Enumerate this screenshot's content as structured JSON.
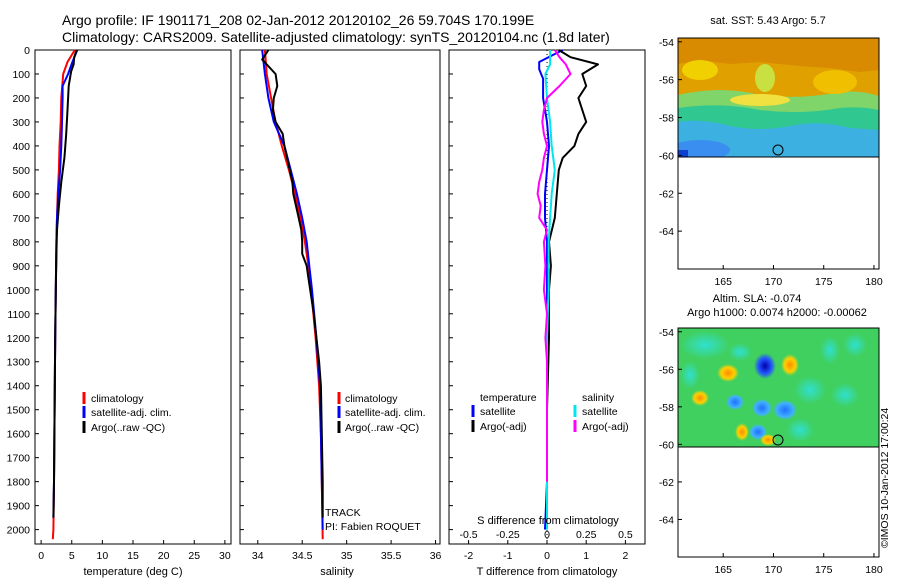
{
  "header": {
    "line1": "Argo profile: IF 1901171_208 02-Jan-2012 20120102_26 59.704S 170.199E",
    "line2": "Climatology: CARS2009. Satellite-adjusted climatology: synTS_20120104.nc (1.8d later)"
  },
  "colors": {
    "climatology": "#ff0000",
    "satellite": "#0000ff",
    "argo": "#000000",
    "satellite_diff": "#00e5ee",
    "argo_diff": "#ff00ff"
  },
  "chart_data": [
    {
      "id": "temperature",
      "type": "line",
      "xlabel": "temperature (deg C)",
      "ylabel": "",
      "xlim": [
        -1,
        31
      ],
      "ylim": [
        2060,
        0
      ],
      "xticks": [
        0,
        5,
        10,
        15,
        20,
        25,
        30
      ],
      "yticks": [
        0,
        100,
        200,
        300,
        400,
        500,
        600,
        700,
        800,
        900,
        1000,
        1100,
        1200,
        1300,
        1400,
        1500,
        1600,
        1700,
        1800,
        1900,
        2000
      ],
      "legend": [
        "climatology",
        "satellite-adj. clim.",
        "Argo(..raw -QC)"
      ],
      "legend_position": "lower-center",
      "series": [
        {
          "name": "climatology",
          "color": "#ff0000",
          "depth": [
            0,
            50,
            100,
            200,
            300,
            400,
            500,
            600,
            700,
            800,
            1000,
            1200,
            1500,
            1800,
            2000,
            2040
          ],
          "values": [
            5.5,
            4.3,
            3.6,
            3.3,
            3.2,
            3.0,
            2.9,
            2.7,
            2.6,
            2.5,
            2.4,
            2.3,
            2.2,
            2.1,
            2.0,
            1.9
          ]
        },
        {
          "name": "satellite-adj. clim.",
          "color": "#0000ff",
          "depth": [
            0,
            50,
            100,
            150,
            200,
            300,
            400,
            500,
            600,
            700,
            800,
            1000,
            1200,
            1500,
            1800,
            1950
          ],
          "values": [
            5.9,
            5.1,
            4.4,
            3.5,
            3.5,
            3.4,
            3.3,
            3.1,
            2.8,
            2.6,
            2.5,
            2.4,
            2.3,
            2.2,
            2.1,
            2.0
          ]
        },
        {
          "name": "Argo(..raw -QC)",
          "color": "#000000",
          "depth": [
            0,
            30,
            60,
            90,
            150,
            250,
            350,
            450,
            550,
            650,
            750,
            850,
            1000,
            1200,
            1500,
            1800,
            1950
          ],
          "values": [
            5.8,
            5.4,
            5.3,
            4.9,
            4.5,
            4.3,
            4.1,
            3.8,
            3.3,
            2.9,
            2.6,
            2.5,
            2.4,
            2.3,
            2.2,
            2.1,
            2.0
          ]
        }
      ]
    },
    {
      "id": "salinity",
      "type": "line",
      "xlabel": "salinity",
      "ylabel": "",
      "xlim": [
        33.8,
        36.05
      ],
      "ylim": [
        2060,
        0
      ],
      "xticks": [
        34,
        34.5,
        35,
        35.5,
        36
      ],
      "legend": [
        "climatology",
        "satellite-adj. clim.",
        "Argo(..raw -QC)"
      ],
      "legend_position": "lower-center",
      "annotations": [
        "TRACK",
        "PI: Fabien ROQUET"
      ],
      "series": [
        {
          "name": "climatology",
          "color": "#ff0000",
          "depth": [
            0,
            100,
            200,
            300,
            400,
            500,
            600,
            700,
            800,
            900,
            1000,
            1200,
            1400,
            1600,
            1800,
            2040
          ],
          "values": [
            34.08,
            34.1,
            34.15,
            34.2,
            34.27,
            34.35,
            34.42,
            34.48,
            34.53,
            34.57,
            34.6,
            34.65,
            34.69,
            34.71,
            34.72,
            34.73
          ]
        },
        {
          "name": "satellite-adj. clim.",
          "color": "#0000ff",
          "depth": [
            0,
            100,
            200,
            300,
            400,
            500,
            600,
            700,
            800,
            900,
            1000,
            1200,
            1400,
            1600,
            1800,
            2000
          ],
          "values": [
            34.05,
            34.08,
            34.12,
            34.18,
            34.3,
            34.37,
            34.44,
            34.5,
            34.55,
            34.58,
            34.61,
            34.66,
            34.7,
            34.71,
            34.72,
            34.73
          ]
        },
        {
          "name": "Argo(..raw -QC)",
          "color": "#000000",
          "depth": [
            0,
            40,
            100,
            150,
            200,
            250,
            300,
            350,
            400,
            450,
            500,
            550,
            600,
            650,
            700,
            750,
            800,
            850,
            900,
            950,
            1000,
            1100,
            1200,
            1300,
            1400,
            1600,
            1800,
            1950
          ],
          "values": [
            34.12,
            34.05,
            34.2,
            34.22,
            34.18,
            34.17,
            34.2,
            34.28,
            34.3,
            34.33,
            34.36,
            34.39,
            34.4,
            34.43,
            34.46,
            34.49,
            34.5,
            34.5,
            34.55,
            34.57,
            34.59,
            34.63,
            34.66,
            34.69,
            34.71,
            34.72,
            34.73,
            34.73
          ]
        }
      ]
    },
    {
      "id": "difference",
      "type": "line",
      "xlabel": "T difference from climatology",
      "top_label": "S difference from climatology",
      "ylabel": "",
      "xlim": [
        -2.5,
        2.5
      ],
      "ylim": [
        2060,
        0
      ],
      "xticks": [
        -2,
        -1,
        0,
        1,
        2
      ],
      "s_xticks": [
        -0.5,
        -0.25,
        0,
        0.25,
        0.5
      ],
      "s_scale": 4,
      "legend_groups": [
        {
          "title": "temperature",
          "items": [
            "satellite",
            "Argo(-adj)"
          ]
        },
        {
          "title": "salinity",
          "items": [
            "satellite",
            "Argo(-adj)"
          ]
        }
      ],
      "legend_position": "lower-center",
      "series": [
        {
          "name": "satellite",
          "group": "temperature",
          "color": "#0000ff",
          "depth": [
            0,
            50,
            80,
            120,
            200,
            300,
            400,
            500,
            600,
            700,
            800,
            1000,
            1200,
            1500,
            1800,
            2000
          ],
          "values": [
            0.4,
            -0.2,
            -0.2,
            -0.1,
            -0.1,
            0.0,
            0.05,
            0.0,
            -0.05,
            -0.05,
            0.0,
            0.0,
            0.0,
            0.0,
            0.0,
            -0.05
          ]
        },
        {
          "name": "Argo(-adj)",
          "group": "temperature",
          "color": "#000000",
          "depth": [
            0,
            30,
            60,
            100,
            150,
            200,
            250,
            300,
            350,
            400,
            450,
            500,
            600,
            700,
            800,
            900,
            1000,
            1200,
            1500,
            1800,
            1950
          ],
          "values": [
            0.3,
            0.6,
            1.3,
            0.9,
            1.0,
            0.8,
            0.9,
            1.0,
            0.8,
            0.7,
            0.4,
            0.3,
            0.25,
            0.2,
            0.05,
            0.1,
            0.05,
            0.05,
            0.0,
            0.0,
            0.0
          ]
        },
        {
          "name": "satellite",
          "group": "salinity",
          "color": "#00e5ee",
          "depth": [
            0,
            60,
            100,
            200,
            300,
            400,
            500,
            600,
            700,
            800,
            1000,
            1200,
            1500,
            1800,
            2000
          ],
          "values": [
            0.02,
            0.02,
            -0.01,
            0.0,
            0.02,
            0.03,
            0.05,
            0.03,
            0.02,
            0.01,
            0.01,
            0.0,
            0.0,
            0.0,
            0.0
          ]
        },
        {
          "name": "Argo(-adj)",
          "group": "salinity",
          "color": "#ff00ff",
          "depth": [
            0,
            30,
            60,
            100,
            150,
            200,
            250,
            300,
            350,
            400,
            450,
            500,
            550,
            600,
            650,
            700,
            750,
            800,
            900,
            1000,
            1100,
            1200,
            1300,
            1500,
            1700,
            1800
          ],
          "values": [
            0.05,
            0.08,
            0.12,
            0.15,
            0.08,
            0.0,
            -0.02,
            -0.03,
            -0.02,
            0.0,
            -0.02,
            -0.03,
            -0.05,
            -0.06,
            -0.04,
            -0.05,
            0.0,
            -0.02,
            -0.01,
            -0.02,
            0.0,
            -0.01,
            0.0,
            0.0,
            0.0,
            0.0
          ]
        }
      ]
    },
    {
      "id": "sst-map",
      "type": "heatmap",
      "title": "sat. SST: 5.43 Argo: 5.7",
      "xticks": [
        165,
        170,
        175,
        180
      ],
      "yticks": [
        -54,
        -56,
        -58,
        -60,
        -62,
        -64
      ],
      "xlim": [
        160.5,
        180.5
      ],
      "ylim": [
        -66,
        -53.8
      ],
      "data_lat_limit": -60.1,
      "marker": {
        "lon": 170.199,
        "lat": -59.704
      }
    },
    {
      "id": "sla-map",
      "type": "heatmap",
      "title": "Altim. SLA: -0.074",
      "subtitle": "Argo h1000: 0.0074 h2000: -0.00062",
      "xticks": [
        165,
        170,
        175,
        180
      ],
      "yticks": [
        -54,
        -56,
        -58,
        -60,
        -62,
        -64
      ],
      "xlim": [
        160.5,
        180.5
      ],
      "ylim": [
        -66,
        -53.8
      ],
      "data_lat_limit": -60.1,
      "marker": {
        "lon": 170.199,
        "lat": -59.704
      }
    }
  ],
  "credit": "©IMOS 10-Jan-2012 17:00:24"
}
